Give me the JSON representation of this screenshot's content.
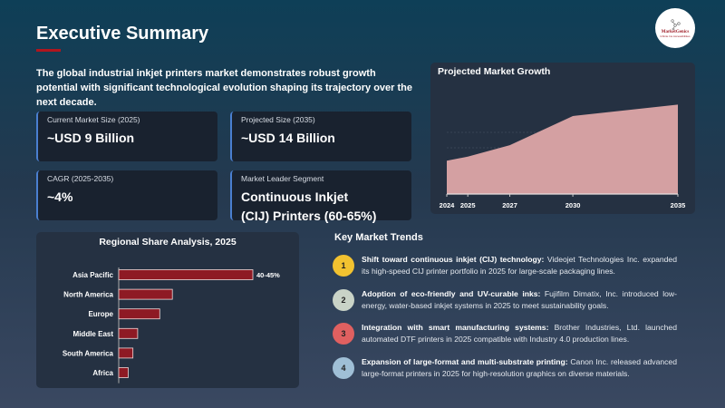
{
  "header": {
    "title": "Executive Summary",
    "logo_text": "MarketGenics",
    "logo_subtext": "Infinite Ins Accessibilities"
  },
  "intro": "The global industrial inkjet printers market demonstrates robust growth potential with significant technological evolution shaping its trajectory over the next decade.",
  "cards": [
    {
      "label": "Current Market Size (2025)",
      "value": "~USD 9 Billion"
    },
    {
      "label": "Projected Size (2035)",
      "value": "~USD 14 Billion"
    },
    {
      "label": "CAGR (2025-2035)",
      "value": "~4%"
    },
    {
      "label": "Market Leader Segment",
      "value": "Continuous Inkjet (CIJ) Printers (60-65%)"
    }
  ],
  "colors": {
    "accent": "#b0161e",
    "card_border": "#4a7fd0",
    "area": "#d4a0a2",
    "bar": "#8e1a24"
  },
  "chart_data": [
    {
      "type": "area",
      "title": "Projected Market Growth",
      "categories": [
        "2024",
        "2025",
        "2027",
        "2030",
        "2035"
      ],
      "values": [
        8.6,
        9,
        10.1,
        12.9,
        14
      ],
      "ylim": [
        5.4,
        15.6
      ],
      "grid": true,
      "xlabel": "",
      "ylabel": ""
    },
    {
      "type": "bar",
      "orientation": "horizontal",
      "title": "Regional Share Analysis, 2025",
      "categories": [
        "Asia Pacific",
        "North America",
        "Europe",
        "Middle East",
        "South America",
        "Africa"
      ],
      "values": [
        42.5,
        17,
        13,
        6,
        4.5,
        3
      ],
      "data_labels": [
        "40-45%",
        "",
        "",
        "",
        "",
        ""
      ]
    }
  ],
  "trends": {
    "title": "Key Market Trends",
    "items": [
      {
        "n": "1",
        "color": "#f2c230",
        "head": "Shift toward continuous inkjet (CIJ) technology:",
        "body": " Videojet Technologies Inc. expanded its high-speed CIJ printer portfolio in 2025 for large-scale packaging lines."
      },
      {
        "n": "2",
        "color": "#c9d3c7",
        "head": "Adoption of eco-friendly and UV-curable inks:",
        "body": " Fujifilm Dimatix, Inc. introduced low-energy, water-based inkjet systems in 2025 to meet sustainability goals."
      },
      {
        "n": "3",
        "color": "#e06060",
        "head": "Integration with smart manufacturing systems:",
        "body": " Brother Industries, Ltd. launched automated DTF printers in 2025 compatible with Industry 4.0 production lines."
      },
      {
        "n": "4",
        "color": "#9fbfd6",
        "head": "Expansion of large-format and multi-substrate printing:",
        "body": " Canon Inc. released advanced large-format printers in 2025 for high-resolution graphics on diverse materials."
      }
    ]
  }
}
